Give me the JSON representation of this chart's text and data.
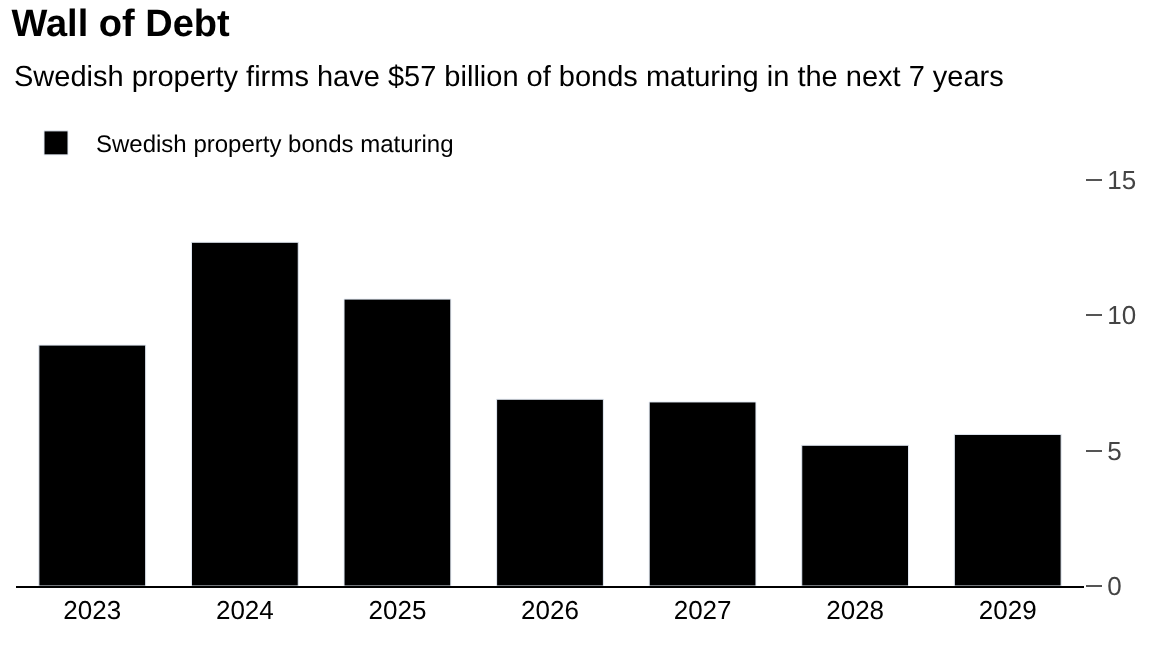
{
  "chart_data": {
    "type": "bar",
    "title": "Wall of Debt",
    "subtitle": "Swedish property firms have $57 billion of bonds maturing in the next 7 years",
    "categories": [
      "2023",
      "2024",
      "2025",
      "2026",
      "2027",
      "2028",
      "2029"
    ],
    "series": [
      {
        "name": "Swedish property bonds maturing",
        "color": "#000000",
        "values": [
          8.9,
          12.7,
          10.6,
          6.9,
          6.8,
          5.2,
          5.6
        ]
      }
    ],
    "ylim": [
      0,
      15
    ],
    "yticks": [
      0,
      5,
      10,
      15
    ],
    "legend": "top left"
  }
}
